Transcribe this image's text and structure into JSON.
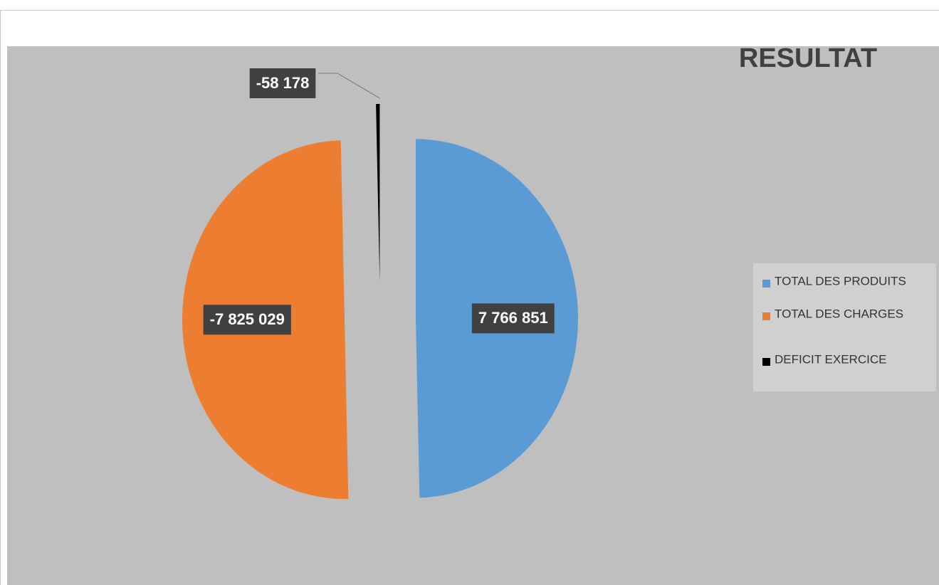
{
  "chart_data": {
    "type": "pie",
    "title": "RESULTAT",
    "categories": [
      "TOTAL DES PRODUITS",
      "TOTAL DES CHARGES",
      "DEFICIT EXERCICE"
    ],
    "values": [
      7766851,
      -7825029,
      -58178
    ],
    "value_labels": [
      "7 766 851",
      "-7 825 029",
      "-58 178"
    ],
    "colors": [
      "#5b9bd5",
      "#ed7d31",
      "#000000"
    ],
    "legend": "right"
  }
}
